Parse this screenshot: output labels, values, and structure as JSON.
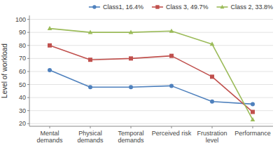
{
  "chart_data": {
    "type": "line",
    "categories": [
      "Mental\ndemands",
      "Physical\ndemands",
      "Temporal\ndemands",
      "Perceived risk",
      "Frustration\nlevel",
      "Performance"
    ],
    "series": [
      {
        "name": "Class1, 16.4%",
        "color": "#4f81bd",
        "marker": "circle",
        "values": [
          61,
          48,
          48,
          49,
          37,
          35
        ]
      },
      {
        "name": "Class 3, 49.7%",
        "color": "#c0504d",
        "marker": "square",
        "values": [
          80,
          69,
          70,
          72,
          56,
          29
        ]
      },
      {
        "name": "Class 2, 33.8%",
        "color": "#9bbb59",
        "marker": "triangle",
        "values": [
          93,
          90,
          90,
          91,
          81,
          23
        ]
      }
    ],
    "y_label": "Level of workload",
    "ylim": [
      18,
      103
    ],
    "yticks": [
      20,
      30,
      40,
      50,
      60,
      70,
      80,
      90,
      100
    ],
    "grid": true,
    "legend": "upper right"
  }
}
